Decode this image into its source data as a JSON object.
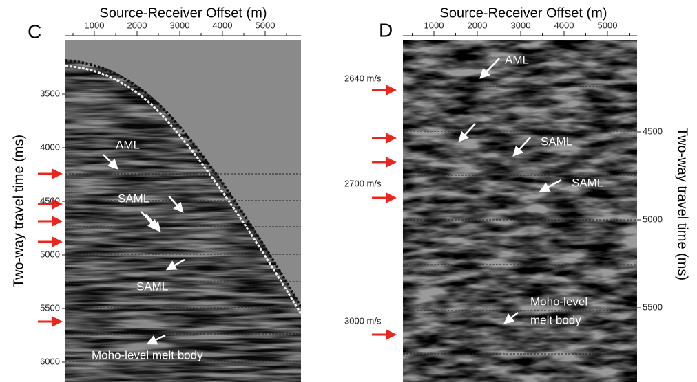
{
  "panels": [
    {
      "label": "C",
      "x_axis_label": "Source-Receiver Offset (m)",
      "x_ticks": [
        1000,
        2000,
        3000,
        4000,
        5000
      ],
      "y_axis_label": "Two-way travel time (ms)",
      "y_ticks": [
        3500,
        4000,
        4500,
        5000,
        5500,
        6000
      ],
      "annotations": [
        "AML",
        "SAML",
        "SAML",
        "Moho-level melt body"
      ]
    },
    {
      "label": "D",
      "x_axis_label": "Source-Receiver Offset (m)",
      "x_ticks": [
        1000,
        2000,
        3000,
        4000,
        5000
      ],
      "y_axis_label": "Two-way travel time (ms)",
      "y_ticks": [
        4500,
        5000,
        5500
      ],
      "annotations": [
        "AML",
        "SAML",
        "SAML",
        "Moho-level",
        "melt body"
      ],
      "velocity_labels": [
        "2640 m/s",
        "2700 m/s",
        "3000 m/s"
      ]
    }
  ]
}
